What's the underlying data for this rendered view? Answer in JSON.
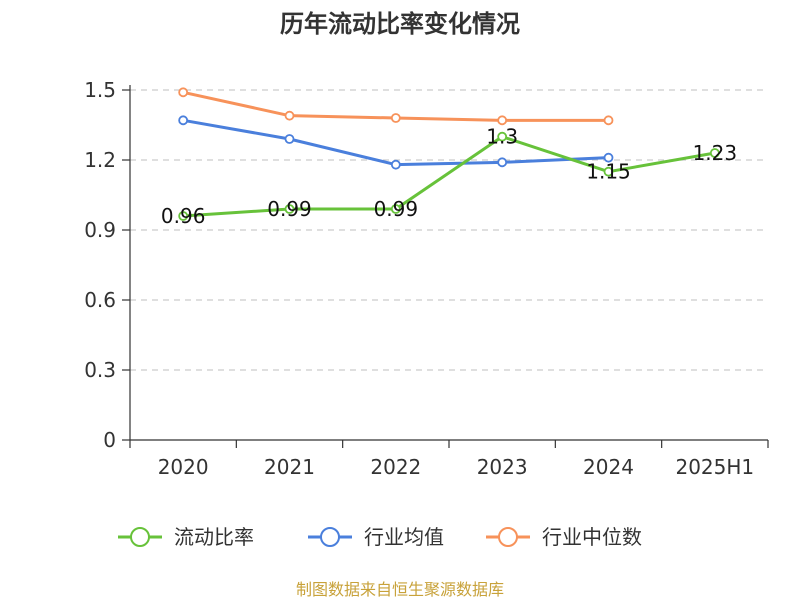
{
  "chart_data": {
    "type": "line",
    "title": "历年流动比率变化情况",
    "categories": [
      "2020",
      "2021",
      "2022",
      "2023",
      "2024",
      "2025H1"
    ],
    "y_ticks": [
      "0",
      "0.3",
      "0.6",
      "0.9",
      "1.2",
      "1.5"
    ],
    "ylim": [
      0,
      1.5
    ],
    "grid": true,
    "legend_position": "bottom",
    "series": [
      {
        "name": "流动比率",
        "color": "#67c23a",
        "values": [
          0.96,
          0.99,
          0.99,
          1.3,
          1.15,
          1.23
        ],
        "labels": [
          "0.96",
          "0.99",
          "0.99",
          "1.3",
          "1.15",
          "1.23"
        ]
      },
      {
        "name": "行业均值",
        "color": "#4a7fdc",
        "values": [
          1.37,
          1.29,
          1.18,
          1.19,
          1.21,
          null
        ]
      },
      {
        "name": "行业中位数",
        "color": "#f7925a",
        "values": [
          1.49,
          1.39,
          1.38,
          1.37,
          1.37,
          null
        ]
      }
    ],
    "source": "制图数据来自恒生聚源数据库"
  }
}
